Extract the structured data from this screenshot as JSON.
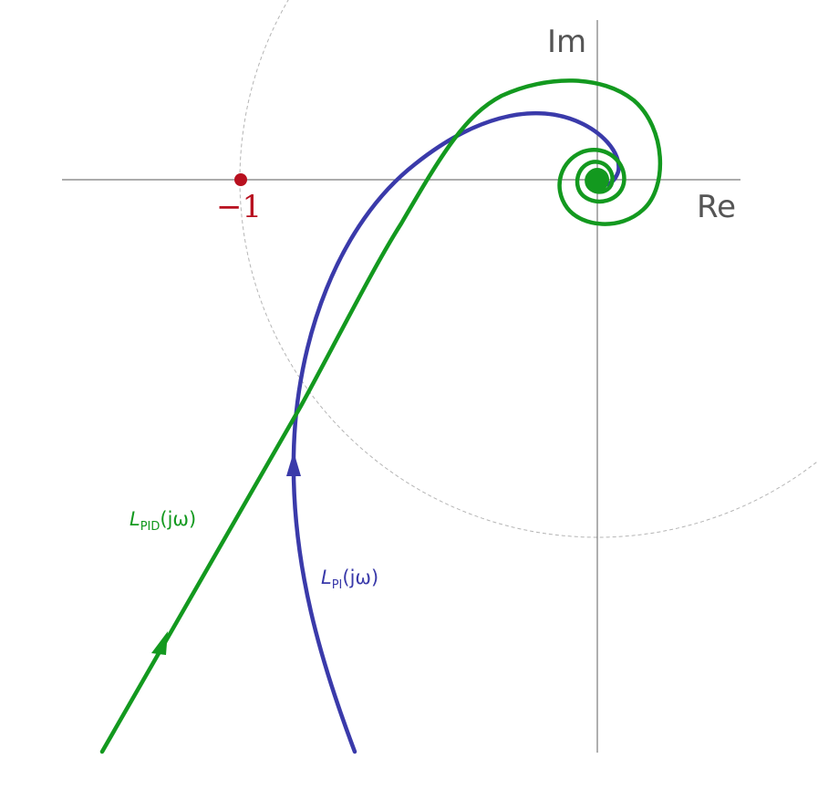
{
  "axes": {
    "re_label": "Re",
    "im_label": "Im"
  },
  "critical_point": {
    "label": "−1",
    "color": "#b8101f"
  },
  "curves": {
    "pid": {
      "label_base": "L",
      "label_sub": "PID",
      "label_arg": "(jω)",
      "color": "#13991f"
    },
    "pi": {
      "label_base": "L",
      "label_sub": "PI",
      "label_arg": "(jω)",
      "color": "#3a3aaa"
    }
  }
}
